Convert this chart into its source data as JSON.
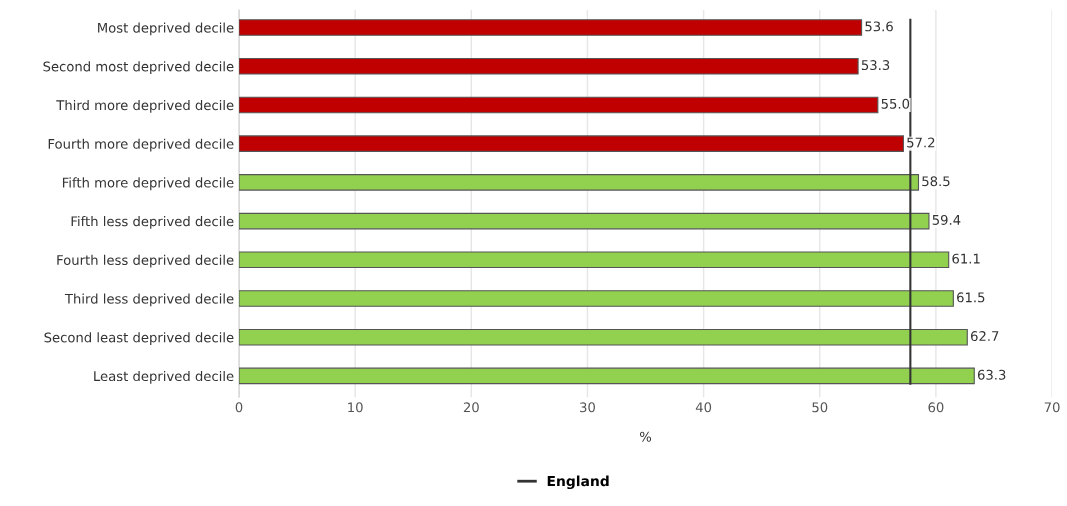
{
  "chart_data": {
    "type": "bar",
    "orientation": "horizontal",
    "xlabel": "%",
    "categories": [
      "Most deprived decile",
      "Second most deprived decile",
      "Third more deprived decile",
      "Fourth more deprived decile",
      "Fifth more deprived decile",
      "Fifth less deprived decile",
      "Fourth less deprived decile",
      "Third less deprived decile",
      "Second least deprived decile",
      "Least deprived decile"
    ],
    "values": [
      53.6,
      53.3,
      55.0,
      57.2,
      58.5,
      59.4,
      61.1,
      61.5,
      62.7,
      63.3
    ],
    "colors": [
      "#c00000",
      "#c00000",
      "#c00000",
      "#c00000",
      "#92d050",
      "#92d050",
      "#92d050",
      "#92d050",
      "#92d050",
      "#92d050"
    ],
    "value_labels": [
      "53.6",
      "53.3",
      "55.0",
      "57.2",
      "58.5",
      "59.4",
      "61.1",
      "61.5",
      "62.7",
      "63.3"
    ],
    "xlim": [
      0,
      70
    ],
    "xticks": [
      0,
      10,
      20,
      30,
      40,
      50,
      60,
      70
    ],
    "grid": "x",
    "legend": "bottom",
    "ref_lines": [
      {
        "axis": "x",
        "value": 57.8,
        "label": "England",
        "color": "#333333"
      }
    ]
  }
}
